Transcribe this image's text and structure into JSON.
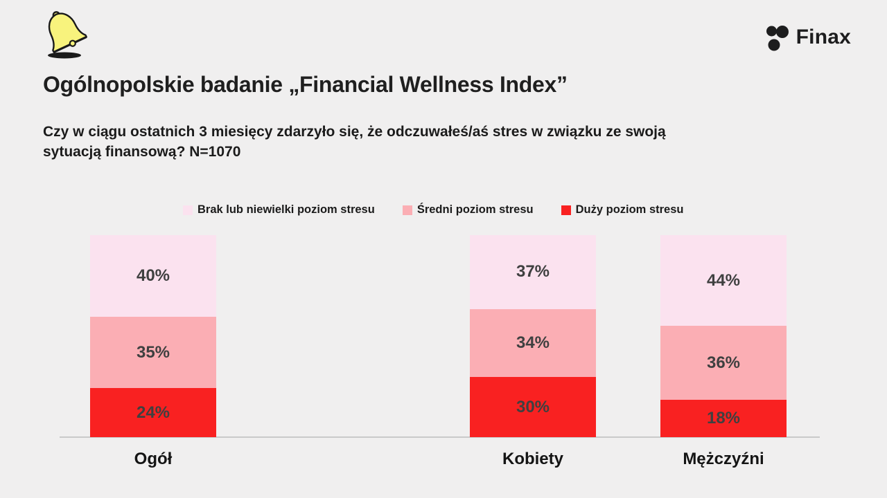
{
  "header": {
    "logo_text": "Finax",
    "bell_icon": "bell-icon",
    "brand_color": "#1d1d1e"
  },
  "title": "Ogólnopolskie badanie „Financial Wellness Index”",
  "subtitle_lines": [
    "Czy w ciągu ostatnich 3 miesięcy zdarzyło się, że odczuwałeś/aś stres w związku ze swoją",
    "sytuacją finansową? N=1070"
  ],
  "colors": {
    "background": "#f0efef",
    "axis_line": "#c9c9c9",
    "value_label": "#3f4040"
  },
  "chart_data": {
    "type": "bar",
    "stacked": true,
    "percent_stacked": true,
    "legend_position": "top",
    "grid": false,
    "categories": [
      "Ogół",
      "Kobiety",
      "Mężczyźni"
    ],
    "series": [
      {
        "name": "Brak lub niewielki poziom stresu",
        "color": "#fbe2ef",
        "values": [
          40,
          37,
          44
        ]
      },
      {
        "name": "Średni poziom stresu",
        "color": "#fbaeb4",
        "values": [
          35,
          34,
          36
        ]
      },
      {
        "name": "Duży poziom stresu",
        "color": "#f92121",
        "values": [
          24,
          30,
          18
        ]
      }
    ],
    "value_suffix": "%"
  }
}
